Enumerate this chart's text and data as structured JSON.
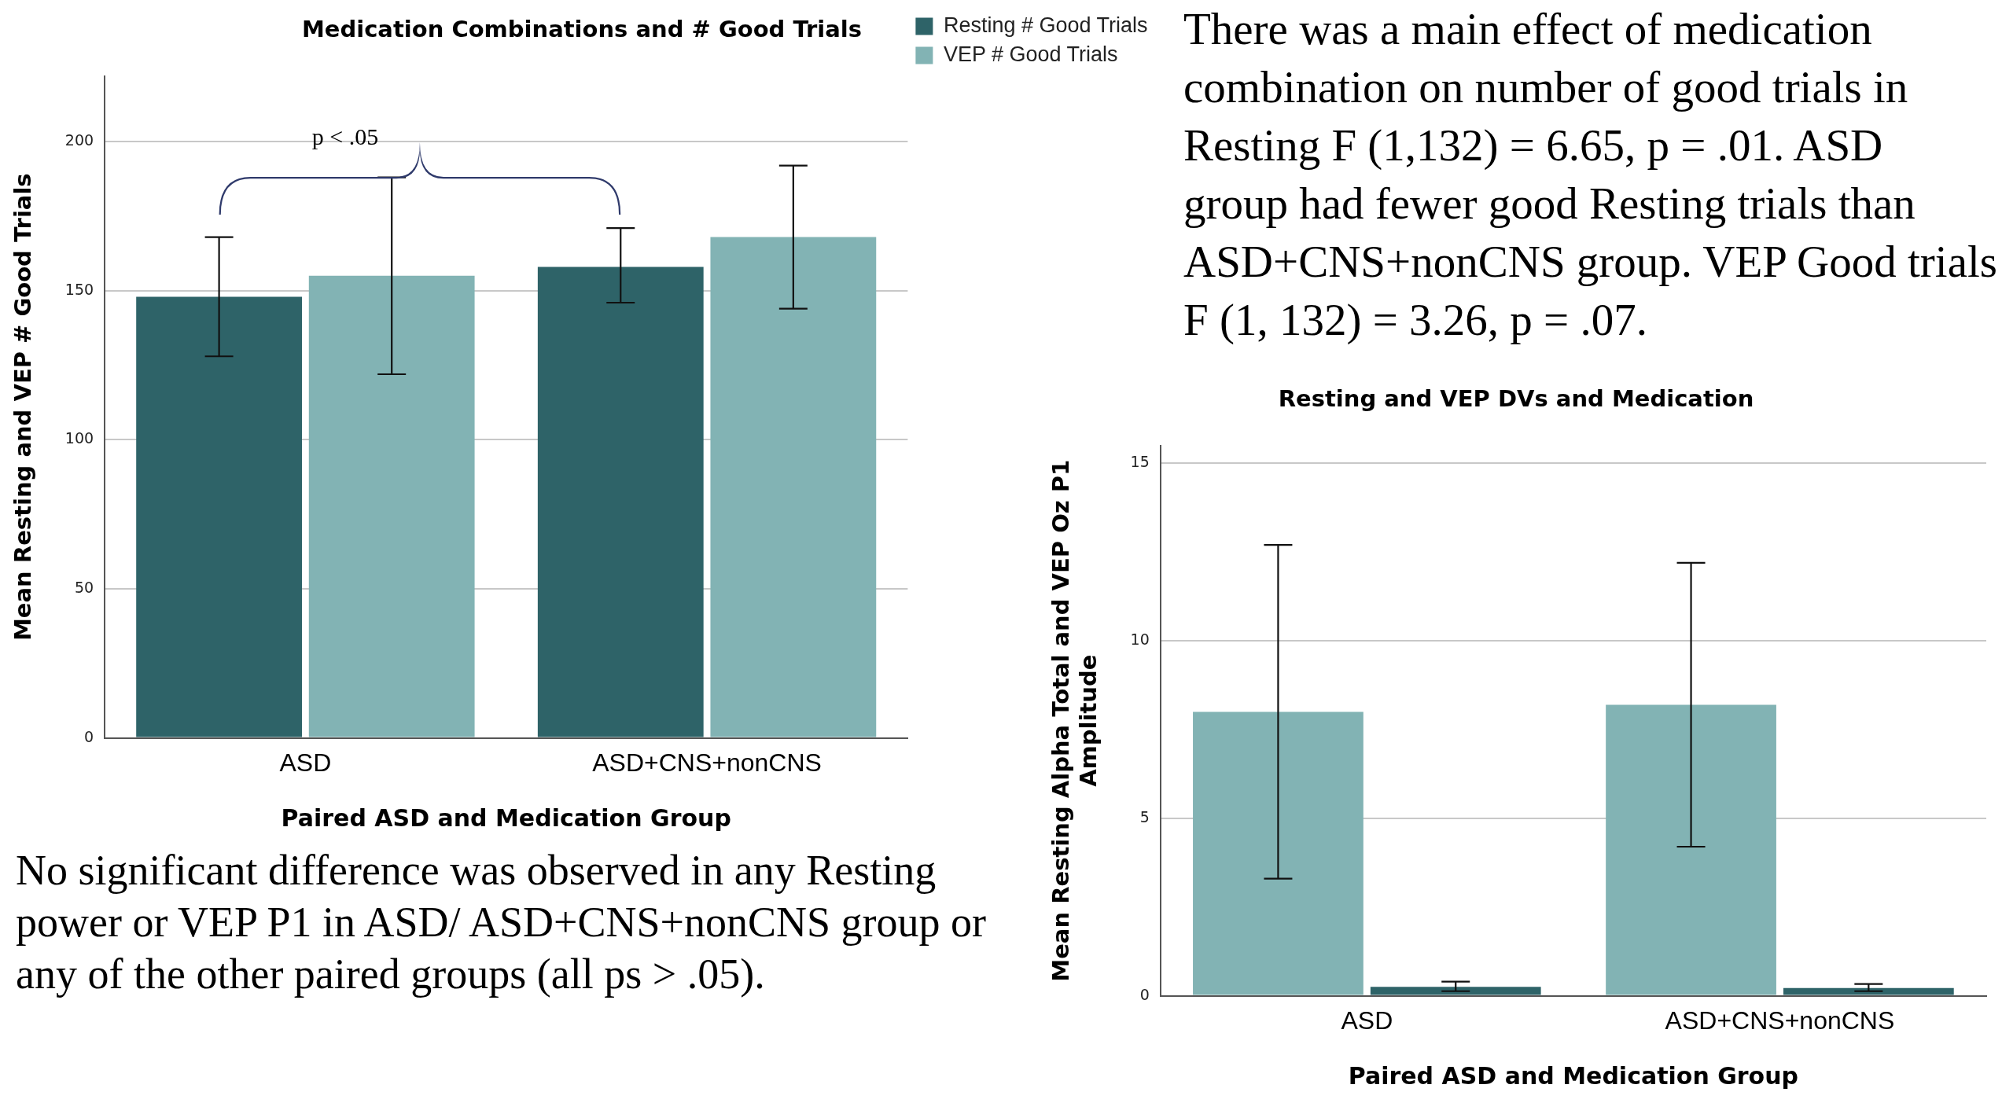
{
  "chart_data": [
    {
      "type": "bar",
      "title": "Medication Combinations and # Good Trials",
      "xlabel": "Paired ASD and Medication Group",
      "ylabel": "Mean Resting and VEP # Good Trials",
      "categories": [
        "ASD",
        "ASD+CNS+nonCNS"
      ],
      "series": [
        {
          "name": "Resting # Good Trials",
          "color": "#2e6368",
          "values": [
            148,
            158
          ],
          "errors": [
            [
              128,
              168
            ],
            [
              146,
              171
            ]
          ]
        },
        {
          "name": "VEP # Good Trials",
          "color": "#82b3b4",
          "values": [
            155,
            168
          ],
          "errors": [
            [
              122,
              188
            ],
            [
              144,
              192
            ]
          ]
        }
      ],
      "ylim": [
        0,
        222
      ],
      "yticks": [
        0,
        50,
        100,
        150,
        200
      ],
      "grid": "y",
      "legend": "top right",
      "annotations": [
        "p < .05"
      ]
    },
    {
      "type": "other",
      "annotations": [
        "There was a main effect of medication combination on number of good trials in Resting F (1,132) = 6.65, p = .01. ASD group had fewer good Resting trials than ASD+CNS+nonCNS group. VEP Good trials F (1, 132) = 3.26, p = .07."
      ]
    },
    {
      "type": "other",
      "annotations": [
        "No significant difference was observed in any Resting power or VEP P1 in ASD/ ASD+CNS+nonCNS group or any of the other paired groups (all ps > .05)."
      ]
    },
    {
      "type": "bar",
      "title": "Resting and VEP DVs and Medication",
      "xlabel": "Paired ASD and Medication Group",
      "ylabel": "Mean Resting Alpha Total and VEP Oz P1\nAmplitude",
      "categories": [
        "ASD",
        "ASD+CNS+nonCNS"
      ],
      "series": [
        {
          "color": "#82b3b4",
          "values": [
            8.0,
            8.2
          ],
          "errors": [
            [
              3.3,
              12.7
            ],
            [
              4.2,
              12.2
            ]
          ]
        },
        {
          "color": "#2e6368",
          "values": [
            0.25,
            0.22
          ],
          "errors": [
            [
              0.13,
              0.4
            ],
            [
              0.13,
              0.33
            ]
          ]
        }
      ],
      "ylim": [
        0,
        15.5
      ],
      "yticks": [
        0,
        5,
        10,
        15
      ],
      "grid": "y"
    }
  ]
}
